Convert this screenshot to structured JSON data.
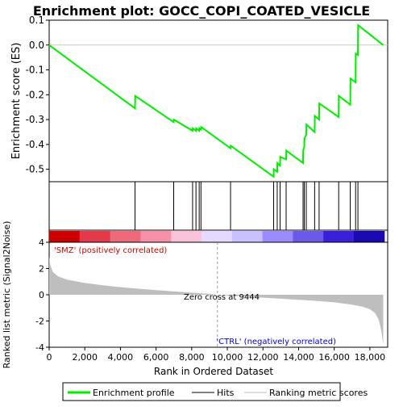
{
  "chart_data": {
    "type": "line",
    "title": "Enrichment plot: GOCC_COPI_COATED_VESICLE",
    "top_panel": {
      "ylabel": "Enrichment score (ES)",
      "ylim": [
        -0.55,
        0.1
      ],
      "yticks": [
        0.1,
        0.0,
        -0.1,
        -0.2,
        -0.3,
        -0.4,
        -0.5
      ],
      "ytick_labels": [
        "0.1",
        "0.0",
        "-0.1",
        "-0.2",
        "-0.3",
        "-0.4",
        "-0.5"
      ],
      "series": [
        {
          "name": "Enrichment profile",
          "color": "#00ee00",
          "x": [
            0,
            4820,
            4830,
            6990,
            7000,
            8050,
            8060,
            8240,
            8250,
            8420,
            8430,
            8520,
            8530,
            10180,
            10190,
            12600,
            12610,
            12800,
            12810,
            12960,
            12970,
            13300,
            13310,
            14250,
            14260,
            14320,
            14330,
            14430,
            14440,
            14900,
            14910,
            15150,
            15160,
            16250,
            16260,
            16900,
            16910,
            17200,
            17210,
            17330,
            17340,
            18750
          ],
          "y": [
            0.0,
            -0.255,
            -0.205,
            -0.31,
            -0.3,
            -0.345,
            -0.335,
            -0.345,
            -0.335,
            -0.345,
            -0.335,
            -0.34,
            -0.33,
            -0.415,
            -0.405,
            -0.53,
            -0.5,
            -0.51,
            -0.475,
            -0.485,
            -0.45,
            -0.46,
            -0.425,
            -0.475,
            -0.425,
            -0.41,
            -0.375,
            -0.36,
            -0.32,
            -0.35,
            -0.285,
            -0.3,
            -0.235,
            -0.29,
            -0.205,
            -0.24,
            -0.135,
            -0.15,
            -0.035,
            -0.04,
            0.08,
            0.0
          ]
        }
      ]
    },
    "hits": [
      4820,
      6990,
      8050,
      8240,
      8420,
      8520,
      10180,
      12600,
      12800,
      12960,
      13300,
      14250,
      14320,
      14430,
      14900,
      15150,
      16250,
      16900,
      17200,
      17330
    ],
    "ranking_bar": {
      "colors": [
        "#cc0000",
        "#e23a4a",
        "#ee6a7a",
        "#f490a8",
        "#f9c2da",
        "#e6d8ff",
        "#c8c0ff",
        "#9a8cff",
        "#6a5ae8",
        "#3820d8",
        "#1a08b0"
      ],
      "label_left": "'SMZ' (positively correlated)",
      "label_right": "'CTRL' (negatively correlated)",
      "label_left_color": "#cc0000",
      "label_right_color": "#0000cc"
    },
    "bottom_panel": {
      "ylabel": "Ranked list metric (Signal2Noise)",
      "xlabel": "Rank in Ordered Dataset",
      "xlim": [
        0,
        19000
      ],
      "xticks": [
        0,
        2000,
        4000,
        6000,
        8000,
        10000,
        12000,
        14000,
        16000,
        18000
      ],
      "xtick_labels": [
        "0",
        "2,000",
        "4,000",
        "6,000",
        "8,000",
        "10,000",
        "12,000",
        "14,000",
        "16,000",
        "18,000"
      ],
      "ylim": [
        -4,
        4
      ],
      "yticks": [
        4,
        2,
        0,
        -2,
        -4
      ],
      "ytick_labels": [
        "4",
        "2",
        "0",
        "-2",
        "-4"
      ],
      "zero_cross_label": "Zero cross at 9444",
      "zero_cross": 9444,
      "metric_profile": {
        "x": [
          0,
          60,
          200,
          500,
          1000,
          2000,
          3000,
          4000,
          5000,
          6000,
          7000,
          8000,
          9000,
          9444,
          10000,
          11000,
          12000,
          13000,
          14000,
          15000,
          16000,
          17000,
          17600,
          18000,
          18300,
          18500,
          18650,
          18750
        ],
        "y": [
          2.9,
          2.3,
          1.75,
          1.4,
          1.15,
          0.9,
          0.72,
          0.58,
          0.46,
          0.35,
          0.25,
          0.16,
          0.07,
          0.0,
          -0.05,
          -0.13,
          -0.22,
          -0.3,
          -0.38,
          -0.47,
          -0.58,
          -0.75,
          -0.92,
          -1.1,
          -1.4,
          -1.9,
          -2.8,
          -3.8
        ]
      },
      "fill_color": "#bebebe"
    },
    "legend": {
      "items": [
        {
          "label": "Enrichment profile",
          "color": "#00ee00"
        },
        {
          "label": "Hits",
          "color": "#000000"
        },
        {
          "label": "Ranking metric scores",
          "color": "#bebebe"
        }
      ]
    }
  }
}
